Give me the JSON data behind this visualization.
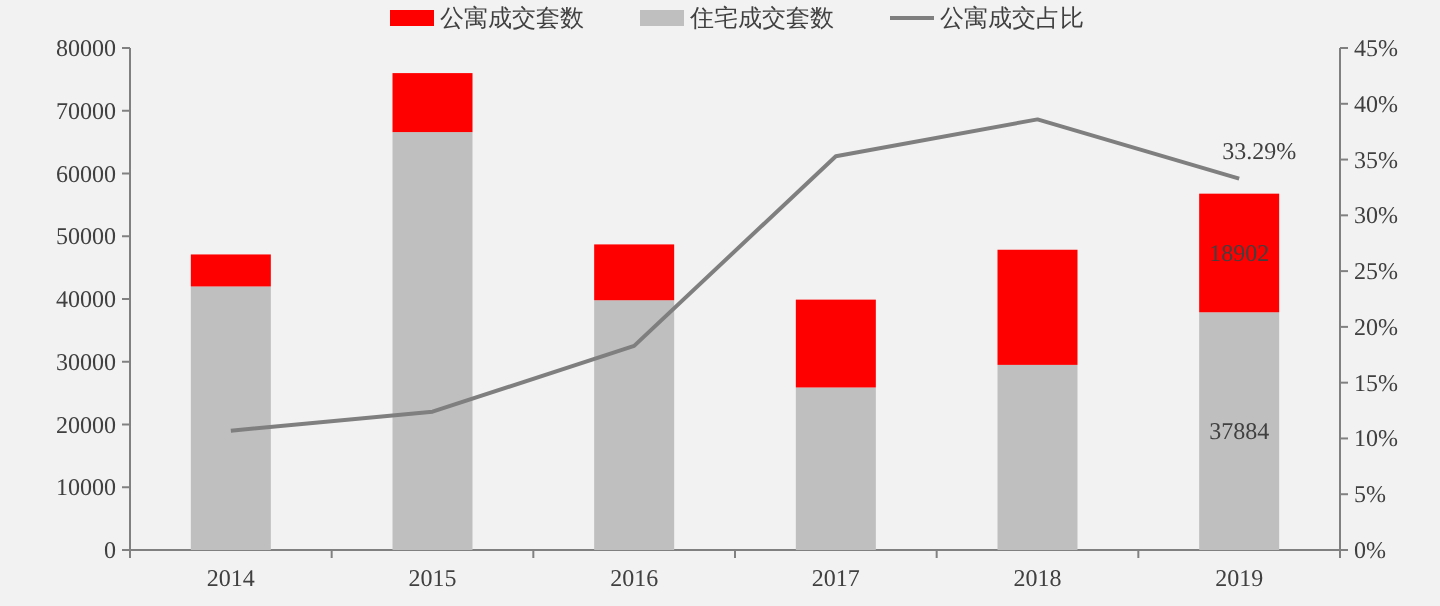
{
  "chart_data": {
    "type": "bar",
    "stacked": true,
    "legend": "top",
    "categories": [
      "2014",
      "2015",
      "2016",
      "2017",
      "2018",
      "2019"
    ],
    "series": [
      {
        "name": "住宅成交套数",
        "color": "#bfbfbf",
        "values": [
          42000,
          66600,
          39800,
          25900,
          29500,
          37884
        ],
        "value_labels": [
          null,
          null,
          null,
          null,
          null,
          "37884"
        ]
      },
      {
        "name": "公寓成交套数",
        "color": "#ff0000",
        "values": [
          5100,
          9400,
          8900,
          14000,
          18350,
          18902
        ],
        "value_labels": [
          null,
          null,
          null,
          null,
          null,
          "18902"
        ]
      },
      {
        "name": "公寓成交占比",
        "type": "line",
        "axis": "y2",
        "color": "#7f7f7f",
        "values": [
          10.7,
          12.4,
          18.3,
          35.3,
          38.6,
          33.29
        ],
        "value_labels": [
          null,
          null,
          null,
          null,
          null,
          "33.29%"
        ]
      }
    ],
    "ylim": [
      0,
      80000
    ],
    "yticks": [
      0,
      10000,
      20000,
      30000,
      40000,
      50000,
      60000,
      70000,
      80000
    ],
    "y2lim": [
      0,
      45
    ],
    "y2ticks": [
      {
        "value": 0,
        "label": "0%"
      },
      {
        "value": 5,
        "label": "5%"
      },
      {
        "value": 10,
        "label": "10%"
      },
      {
        "value": 15,
        "label": "15%"
      },
      {
        "value": 20,
        "label": "20%"
      },
      {
        "value": 25,
        "label": "25%"
      },
      {
        "value": 30,
        "label": "30%"
      },
      {
        "value": 35,
        "label": "35%"
      },
      {
        "value": 40,
        "label": "40%"
      },
      {
        "value": 45,
        "label": "45%"
      }
    ]
  }
}
